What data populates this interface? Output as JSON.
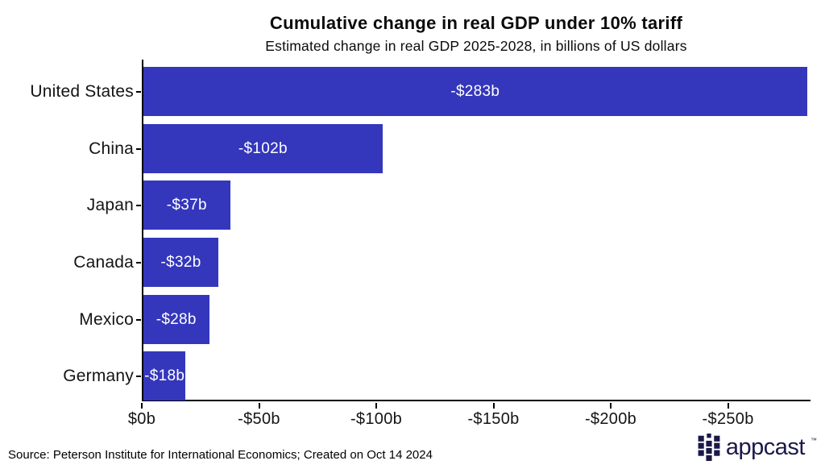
{
  "chart_data": {
    "type": "bar",
    "orientation": "horizontal",
    "title": "Cumulative change in real GDP under 10% tariff",
    "subtitle": "Estimated change in real GDP 2025-2028, in billions of US dollars",
    "categories": [
      "United States",
      "China",
      "Japan",
      "Canada",
      "Mexico",
      "Germany"
    ],
    "values": [
      -283,
      -102,
      -37,
      -32,
      -28,
      -18
    ],
    "bar_labels": [
      "-$283b",
      "-$102b",
      "-$37b",
      "-$32b",
      "-$28b",
      "-$18b"
    ],
    "x_ticks": [
      {
        "value": 0,
        "label": "$0b"
      },
      {
        "value": -50,
        "label": "-$50b"
      },
      {
        "value": -100,
        "label": "-$100b"
      },
      {
        "value": -150,
        "label": "-$150b"
      },
      {
        "value": -200,
        "label": "-$200b"
      },
      {
        "value": -250,
        "label": "-$250b"
      }
    ],
    "xlim": [
      0,
      -285.2
    ],
    "grid": false,
    "legend": "none",
    "bar_color": "#3437bb",
    "bar_label_color": "#ffffff",
    "axis_color": "#000000",
    "text_color": "#141414"
  },
  "footer": {
    "source": "Source: Peterson Institute for International Economics; Created on Oct 14 2024",
    "logo_text": "appcast",
    "logo_tm": "™",
    "logo_color": "#1b1948"
  }
}
